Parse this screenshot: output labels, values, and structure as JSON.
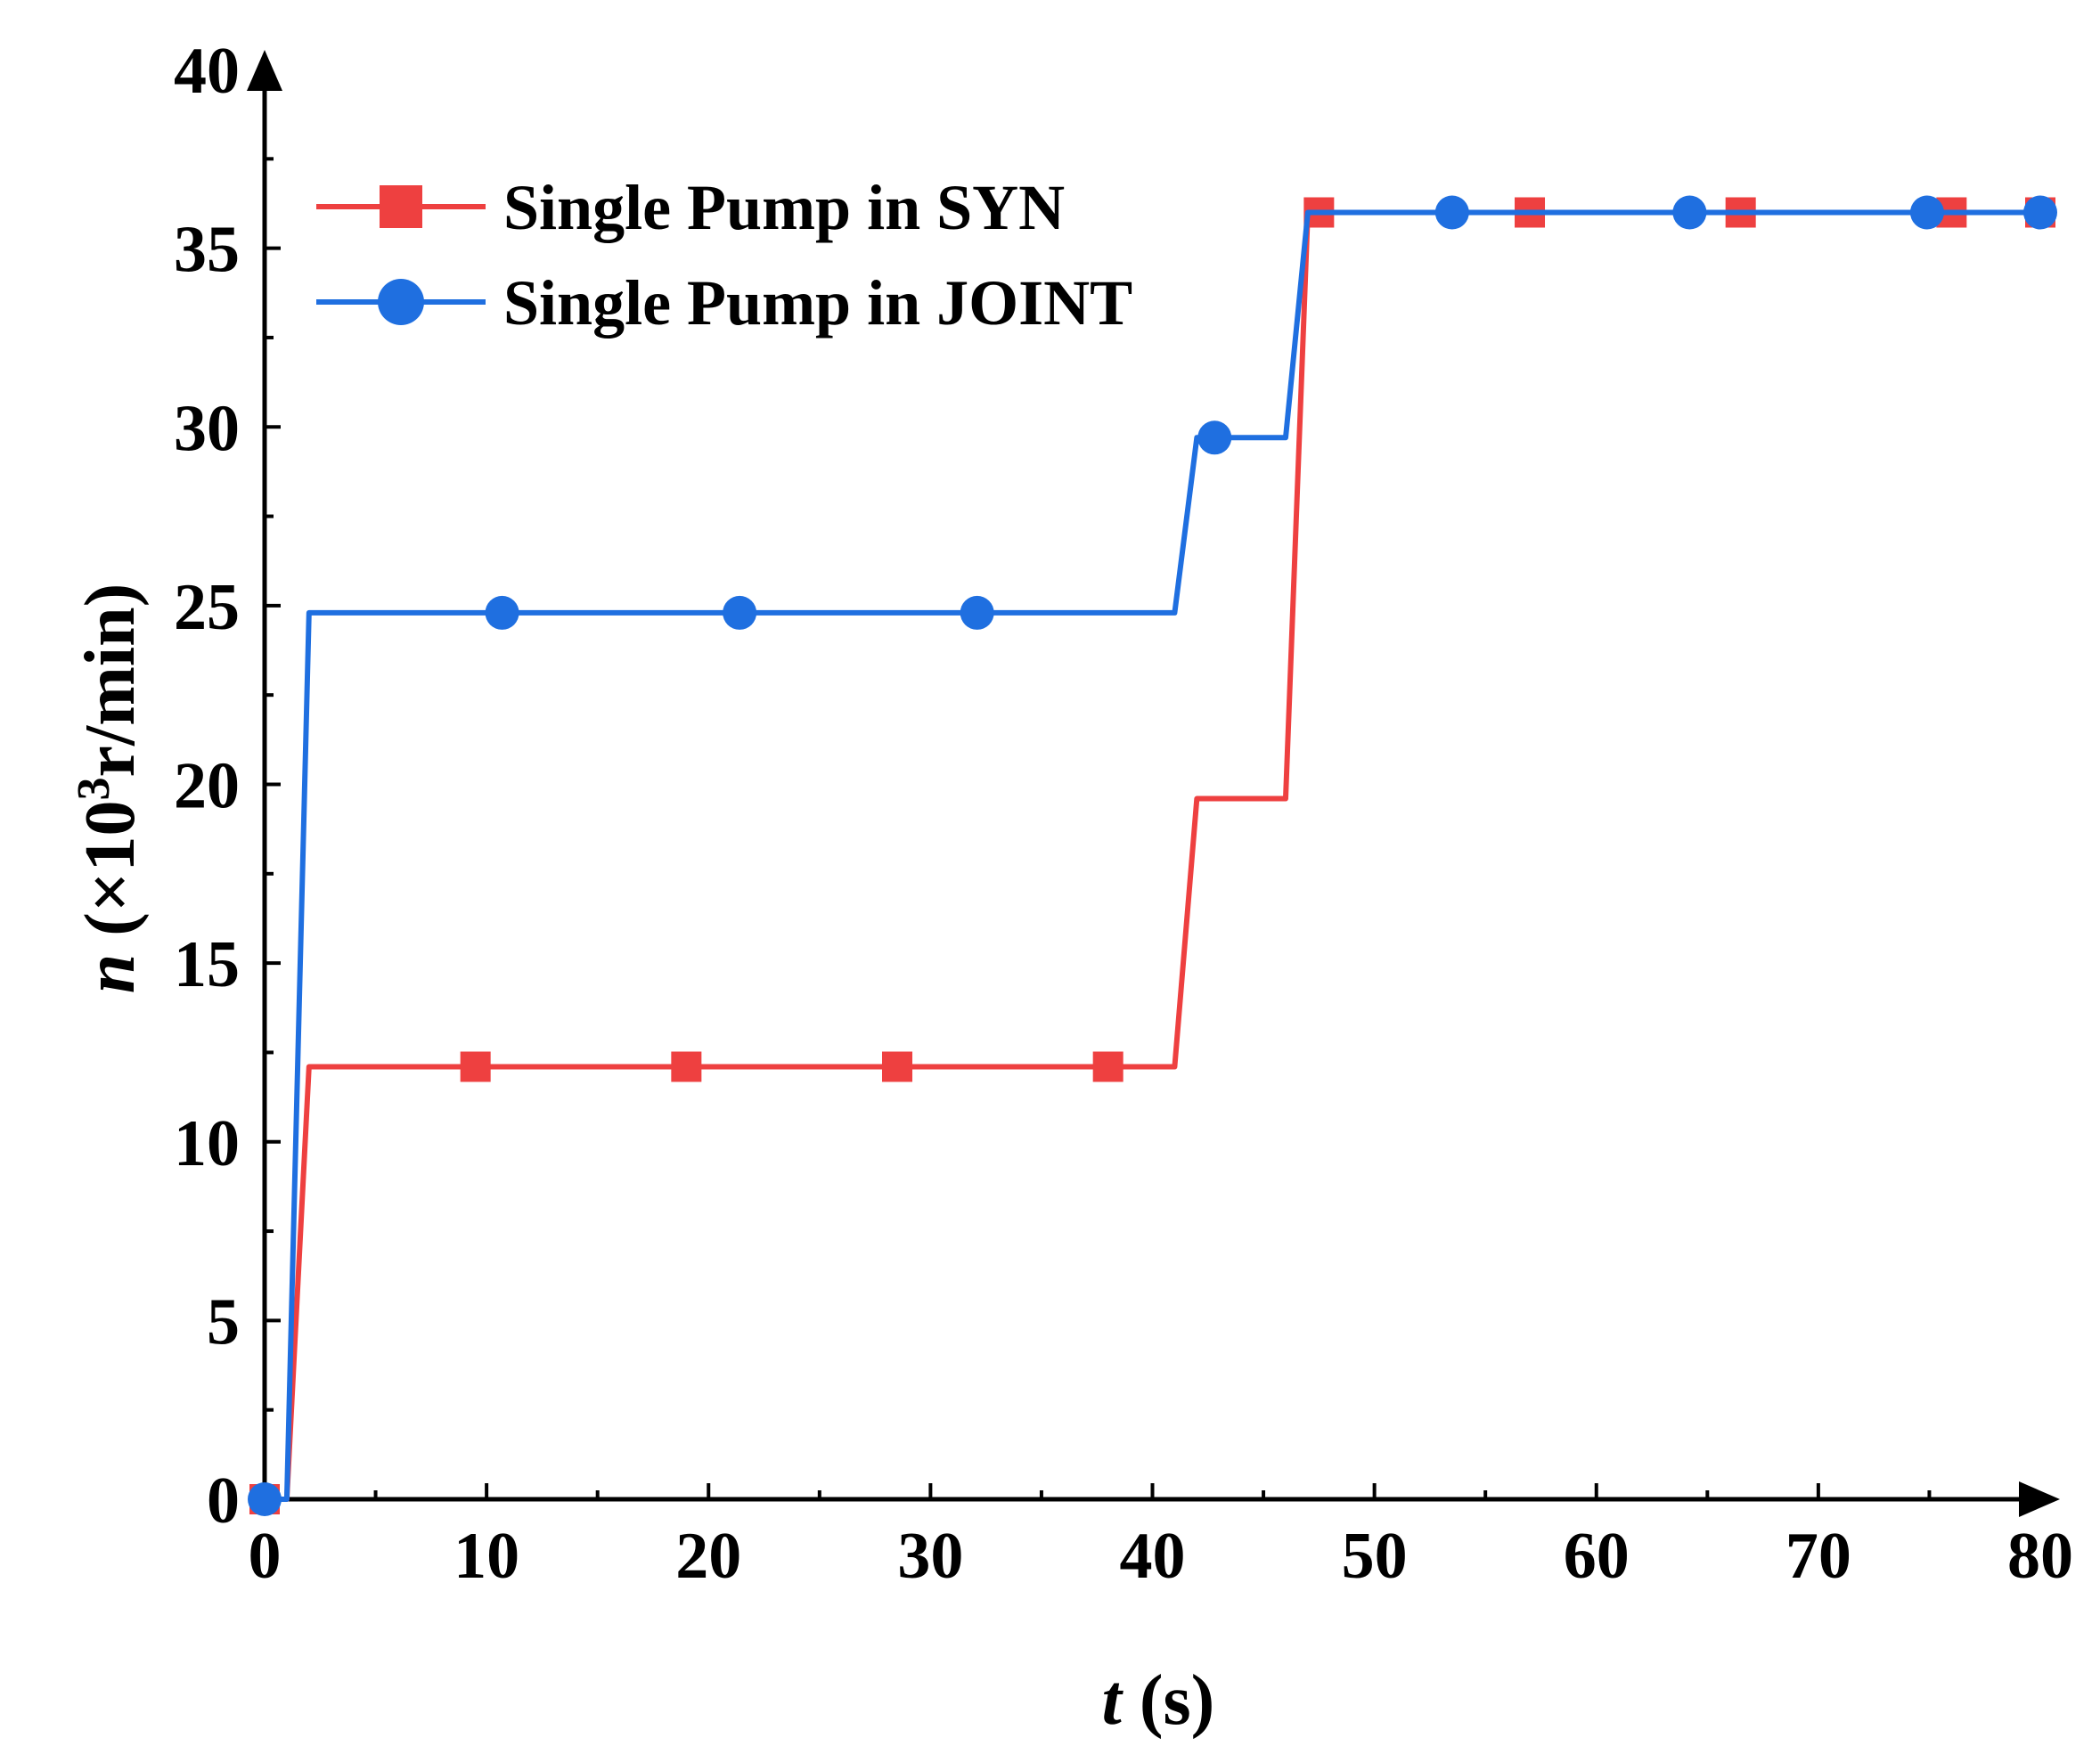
{
  "chart_data": {
    "type": "line",
    "title": "",
    "xlabel_var": "t",
    "xlabel_unit": " (s)",
    "ylabel_var": "n",
    "ylabel_prefix": " (×10",
    "ylabel_exp": "3",
    "ylabel_suffix": "r/min)",
    "xlim": [
      0,
      80
    ],
    "ylim": [
      0,
      40
    ],
    "x_ticks": [
      0,
      10,
      20,
      30,
      40,
      50,
      60,
      70,
      80
    ],
    "x_tick_labels": [
      "0",
      "10",
      "20",
      "30",
      "40",
      "50",
      "60",
      "70",
      "80"
    ],
    "y_ticks": [
      0,
      5,
      10,
      15,
      20,
      25,
      30,
      35,
      40
    ],
    "y_tick_labels": [
      "0",
      "5",
      "10",
      "15",
      "20",
      "25",
      "30",
      "35",
      "40"
    ],
    "grid": false,
    "legend_position": "top-left",
    "series": [
      {
        "name": "Single Pump in SYN",
        "color": "#ee4040",
        "marker": "square",
        "x": [
          0,
          1,
          2,
          41,
          42,
          46,
          47,
          80
        ],
        "y": [
          0,
          0,
          12.1,
          12.1,
          19.6,
          19.6,
          36,
          36
        ],
        "marker_x": [
          0,
          9.5,
          19,
          28.5,
          38,
          47.5,
          57,
          66.5,
          76,
          80
        ],
        "marker_y": [
          0,
          12.1,
          12.1,
          12.1,
          12.1,
          36,
          36,
          36,
          36,
          36
        ]
      },
      {
        "name": "Single Pump in JOINT",
        "color": "#1f6fe0",
        "marker": "circle",
        "x": [
          0,
          1,
          2,
          41,
          42,
          46,
          47,
          80
        ],
        "y": [
          0,
          0,
          24.8,
          24.8,
          29.7,
          29.7,
          36,
          36
        ],
        "marker_x": [
          0,
          10.7,
          21.4,
          32.1,
          42.8,
          53.5,
          64.2,
          74.9,
          80
        ],
        "marker_y": [
          0,
          24.8,
          24.8,
          24.8,
          29.7,
          36,
          36,
          36,
          36
        ]
      }
    ]
  }
}
